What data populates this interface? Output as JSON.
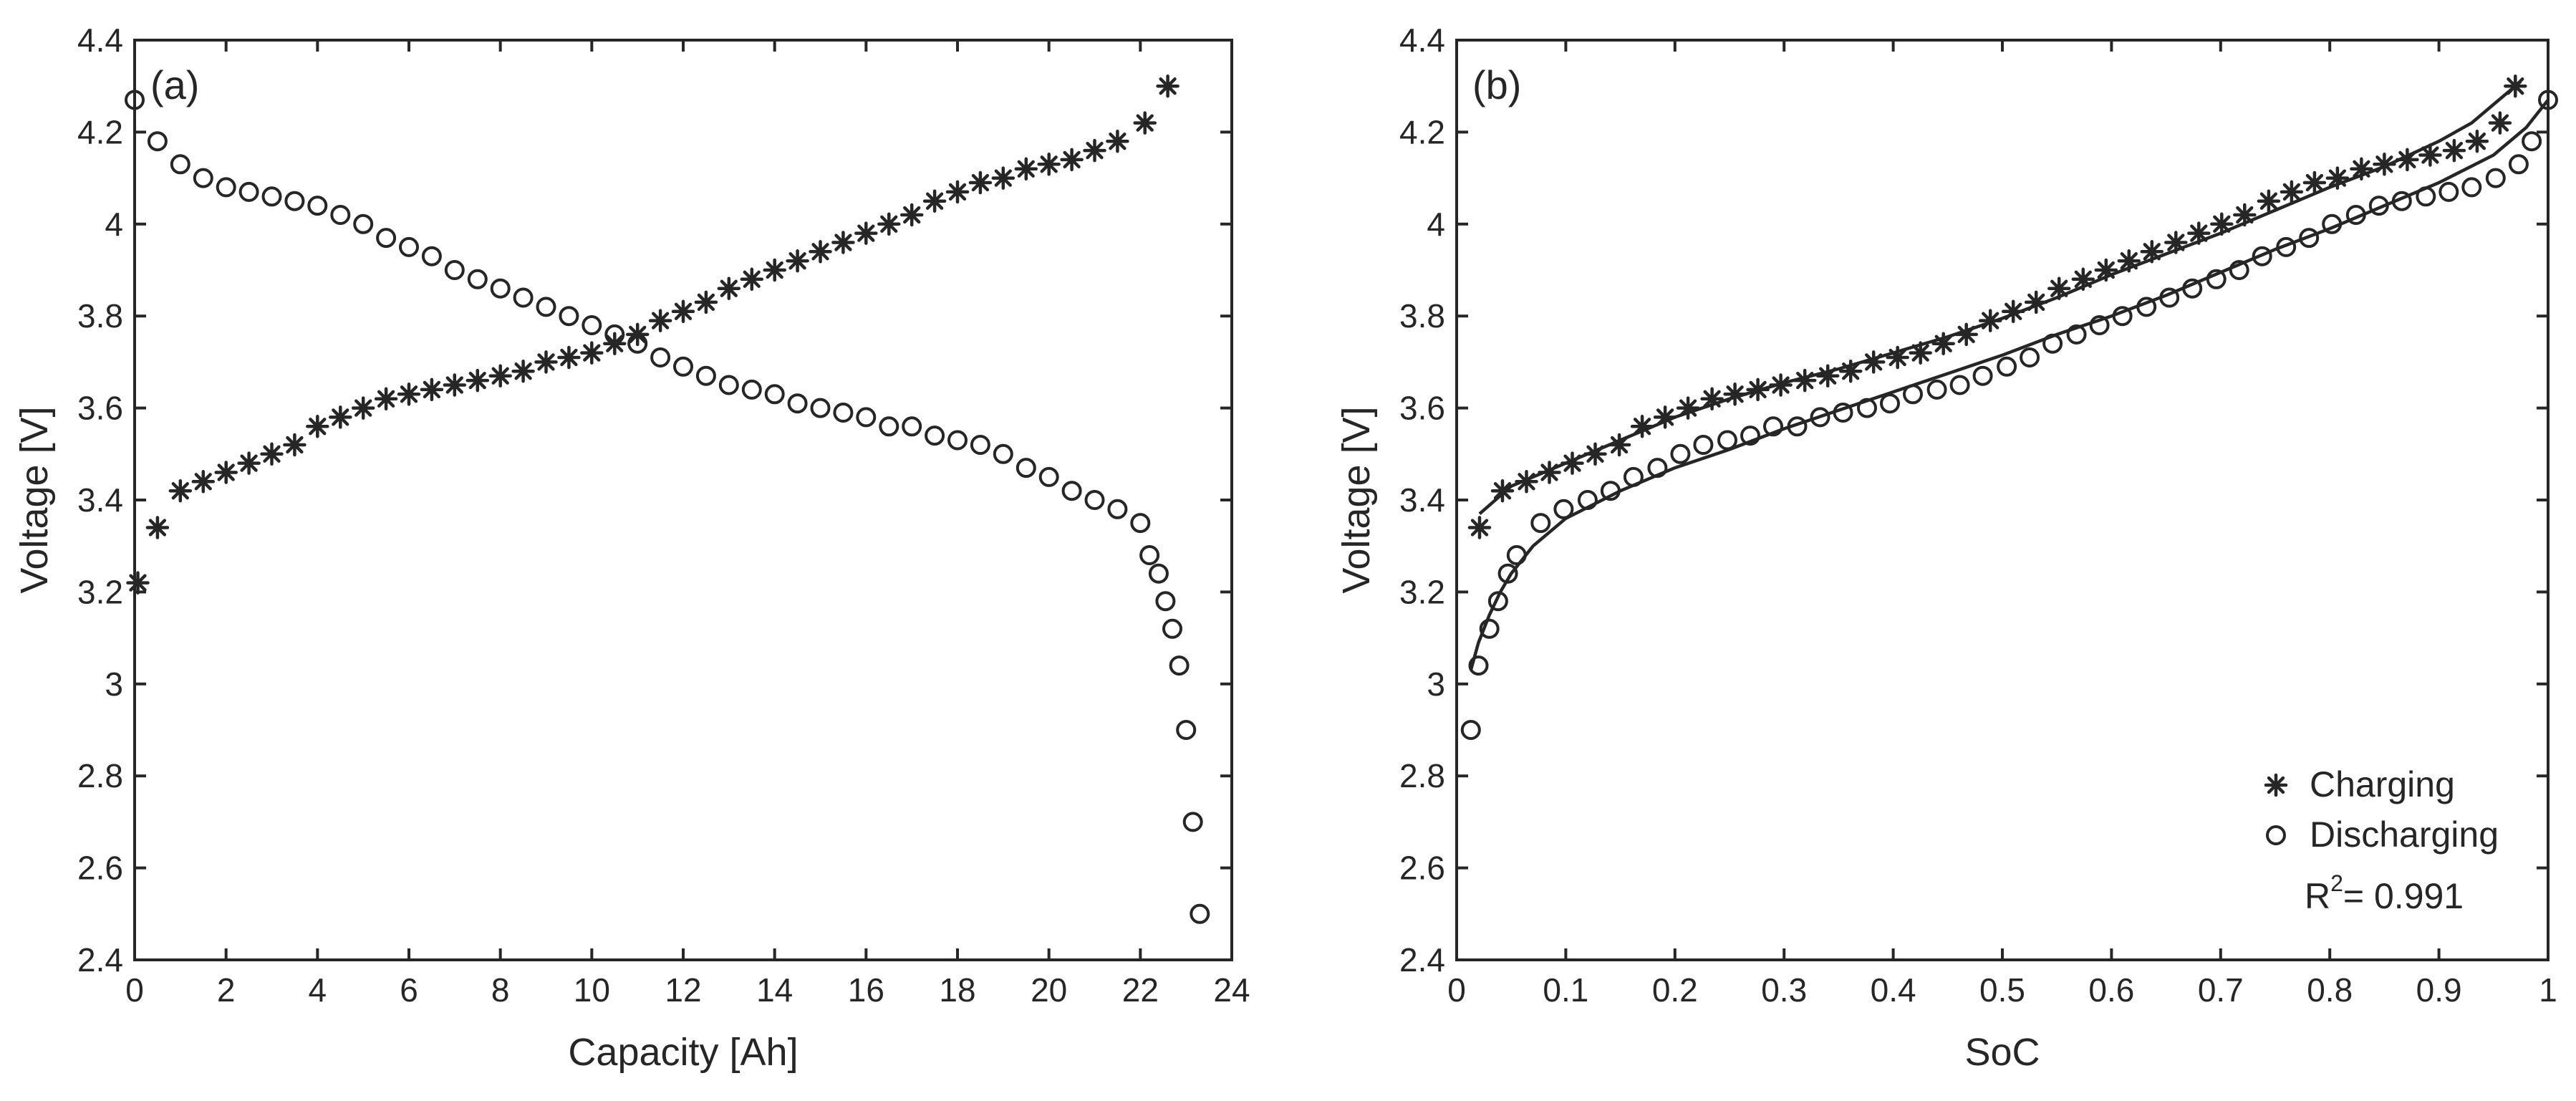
{
  "chart_data": [
    {
      "panel_label": "(a)",
      "type": "scatter",
      "xlabel": "Capacity [Ah]",
      "ylabel": "Voltage [V]",
      "xlim": [
        0,
        24
      ],
      "ylim": [
        2.4,
        4.4
      ],
      "xticks": [
        "0",
        "2",
        "4",
        "6",
        "8",
        "10",
        "12",
        "14",
        "16",
        "18",
        "20",
        "22",
        "24"
      ],
      "yticks": [
        "2.4",
        "2.6",
        "2.8",
        "3",
        "3.2",
        "3.4",
        "3.6",
        "3.8",
        "4",
        "4.2",
        "4.4"
      ],
      "grid": false,
      "series": [
        {
          "name": "Charging",
          "marker": "asterisk",
          "points": [
            [
              0.07,
              3.22
            ],
            [
              0.5,
              3.34
            ],
            [
              1.0,
              3.42
            ],
            [
              1.5,
              3.44
            ],
            [
              2.0,
              3.46
            ],
            [
              2.5,
              3.48
            ],
            [
              3.0,
              3.5
            ],
            [
              3.5,
              3.52
            ],
            [
              4.0,
              3.56
            ],
            [
              4.5,
              3.58
            ],
            [
              5.0,
              3.6
            ],
            [
              5.5,
              3.62
            ],
            [
              6.0,
              3.63
            ],
            [
              6.5,
              3.64
            ],
            [
              7.0,
              3.65
            ],
            [
              7.5,
              3.66
            ],
            [
              8.0,
              3.67
            ],
            [
              8.5,
              3.68
            ],
            [
              9.0,
              3.7
            ],
            [
              9.5,
              3.71
            ],
            [
              10.0,
              3.72
            ],
            [
              10.5,
              3.74
            ],
            [
              11.0,
              3.76
            ],
            [
              11.5,
              3.79
            ],
            [
              12.0,
              3.81
            ],
            [
              12.5,
              3.83
            ],
            [
              13.0,
              3.86
            ],
            [
              13.5,
              3.88
            ],
            [
              14.0,
              3.9
            ],
            [
              14.5,
              3.92
            ],
            [
              15.0,
              3.94
            ],
            [
              15.5,
              3.96
            ],
            [
              16.0,
              3.98
            ],
            [
              16.5,
              4.0
            ],
            [
              17.0,
              4.02
            ],
            [
              17.5,
              4.05
            ],
            [
              18.0,
              4.07
            ],
            [
              18.5,
              4.09
            ],
            [
              19.0,
              4.1
            ],
            [
              19.5,
              4.12
            ],
            [
              20.0,
              4.13
            ],
            [
              20.5,
              4.14
            ],
            [
              21.0,
              4.16
            ],
            [
              21.5,
              4.18
            ],
            [
              22.1,
              4.22
            ],
            [
              22.6,
              4.3
            ]
          ]
        },
        {
          "name": "Discharging",
          "marker": "circle",
          "points": [
            [
              0.0,
              4.27
            ],
            [
              0.5,
              4.18
            ],
            [
              1.0,
              4.13
            ],
            [
              1.5,
              4.1
            ],
            [
              2.0,
              4.08
            ],
            [
              2.5,
              4.07
            ],
            [
              3.0,
              4.06
            ],
            [
              3.5,
              4.05
            ],
            [
              4.0,
              4.04
            ],
            [
              4.5,
              4.02
            ],
            [
              5.0,
              4.0
            ],
            [
              5.5,
              3.97
            ],
            [
              6.0,
              3.95
            ],
            [
              6.5,
              3.93
            ],
            [
              7.0,
              3.9
            ],
            [
              7.5,
              3.88
            ],
            [
              8.0,
              3.86
            ],
            [
              8.5,
              3.84
            ],
            [
              9.0,
              3.82
            ],
            [
              9.5,
              3.8
            ],
            [
              10.0,
              3.78
            ],
            [
              10.5,
              3.76
            ],
            [
              11.0,
              3.74
            ],
            [
              11.5,
              3.71
            ],
            [
              12.0,
              3.69
            ],
            [
              12.5,
              3.67
            ],
            [
              13.0,
              3.65
            ],
            [
              13.5,
              3.64
            ],
            [
              14.0,
              3.63
            ],
            [
              14.5,
              3.61
            ],
            [
              15.0,
              3.6
            ],
            [
              15.5,
              3.59
            ],
            [
              16.0,
              3.58
            ],
            [
              16.5,
              3.56
            ],
            [
              17.0,
              3.56
            ],
            [
              17.5,
              3.54
            ],
            [
              18.0,
              3.53
            ],
            [
              18.5,
              3.52
            ],
            [
              19.0,
              3.5
            ],
            [
              19.5,
              3.47
            ],
            [
              20.0,
              3.45
            ],
            [
              20.5,
              3.42
            ],
            [
              21.0,
              3.4
            ],
            [
              21.5,
              3.38
            ],
            [
              22.0,
              3.35
            ],
            [
              22.2,
              3.28
            ],
            [
              22.4,
              3.24
            ],
            [
              22.55,
              3.18
            ],
            [
              22.7,
              3.12
            ],
            [
              22.85,
              3.04
            ],
            [
              23.0,
              2.9
            ],
            [
              23.15,
              2.7
            ],
            [
              23.3,
              2.5
            ]
          ]
        }
      ]
    },
    {
      "panel_label": "(b)",
      "type": "scatter",
      "xlabel": "SoC",
      "ylabel": "Voltage [V]",
      "xlim": [
        0,
        1
      ],
      "ylim": [
        2.4,
        4.4
      ],
      "xticks": [
        "0",
        "0.1",
        "0.2",
        "0.3",
        "0.4",
        "0.5",
        "0.6",
        "0.7",
        "0.8",
        "0.9",
        "1"
      ],
      "yticks": [
        "2.4",
        "2.6",
        "2.8",
        "3",
        "3.2",
        "3.4",
        "3.6",
        "3.8",
        "4",
        "4.2",
        "4.4"
      ],
      "grid": false,
      "legend_position": "bottom-right",
      "annotation": {
        "prefix": "R",
        "superscript": "2",
        "suffix": "= 0.991"
      },
      "series": [
        {
          "name": "Charging",
          "marker": "asterisk",
          "points": [
            [
              0.021,
              3.34
            ],
            [
              0.042,
              3.42
            ],
            [
              0.064,
              3.44
            ],
            [
              0.085,
              3.46
            ],
            [
              0.106,
              3.48
            ],
            [
              0.127,
              3.5
            ],
            [
              0.149,
              3.52
            ],
            [
              0.17,
              3.56
            ],
            [
              0.191,
              3.58
            ],
            [
              0.212,
              3.6
            ],
            [
              0.234,
              3.62
            ],
            [
              0.255,
              3.63
            ],
            [
              0.276,
              3.64
            ],
            [
              0.297,
              3.65
            ],
            [
              0.319,
              3.66
            ],
            [
              0.34,
              3.67
            ],
            [
              0.361,
              3.68
            ],
            [
              0.382,
              3.7
            ],
            [
              0.404,
              3.71
            ],
            [
              0.425,
              3.72
            ],
            [
              0.446,
              3.74
            ],
            [
              0.467,
              3.76
            ],
            [
              0.489,
              3.79
            ],
            [
              0.51,
              3.81
            ],
            [
              0.531,
              3.83
            ],
            [
              0.552,
              3.86
            ],
            [
              0.574,
              3.88
            ],
            [
              0.595,
              3.9
            ],
            [
              0.616,
              3.92
            ],
            [
              0.637,
              3.94
            ],
            [
              0.659,
              3.96
            ],
            [
              0.68,
              3.98
            ],
            [
              0.701,
              4.0
            ],
            [
              0.722,
              4.02
            ],
            [
              0.744,
              4.05
            ],
            [
              0.765,
              4.07
            ],
            [
              0.786,
              4.09
            ],
            [
              0.807,
              4.1
            ],
            [
              0.829,
              4.12
            ],
            [
              0.85,
              4.13
            ],
            [
              0.871,
              4.14
            ],
            [
              0.892,
              4.15
            ],
            [
              0.914,
              4.16
            ],
            [
              0.935,
              4.18
            ],
            [
              0.956,
              4.22
            ],
            [
              0.97,
              4.3
            ]
          ]
        },
        {
          "name": "Discharging",
          "marker": "circle",
          "points": [
            [
              0.013,
              2.9
            ],
            [
              0.02,
              3.04
            ],
            [
              0.03,
              3.12
            ],
            [
              0.038,
              3.18
            ],
            [
              0.047,
              3.24
            ],
            [
              0.055,
              3.28
            ],
            [
              0.077,
              3.35
            ],
            [
              0.098,
              3.38
            ],
            [
              0.12,
              3.4
            ],
            [
              0.141,
              3.42
            ],
            [
              0.162,
              3.45
            ],
            [
              0.184,
              3.47
            ],
            [
              0.205,
              3.5
            ],
            [
              0.226,
              3.52
            ],
            [
              0.248,
              3.53
            ],
            [
              0.269,
              3.54
            ],
            [
              0.29,
              3.56
            ],
            [
              0.312,
              3.56
            ],
            [
              0.333,
              3.58
            ],
            [
              0.354,
              3.59
            ],
            [
              0.376,
              3.6
            ],
            [
              0.397,
              3.61
            ],
            [
              0.418,
              3.63
            ],
            [
              0.44,
              3.64
            ],
            [
              0.461,
              3.65
            ],
            [
              0.482,
              3.67
            ],
            [
              0.504,
              3.69
            ],
            [
              0.525,
              3.71
            ],
            [
              0.546,
              3.74
            ],
            [
              0.568,
              3.76
            ],
            [
              0.589,
              3.78
            ],
            [
              0.61,
              3.8
            ],
            [
              0.632,
              3.82
            ],
            [
              0.653,
              3.84
            ],
            [
              0.674,
              3.86
            ],
            [
              0.696,
              3.88
            ],
            [
              0.717,
              3.9
            ],
            [
              0.738,
              3.93
            ],
            [
              0.76,
              3.95
            ],
            [
              0.781,
              3.97
            ],
            [
              0.802,
              4.0
            ],
            [
              0.824,
              4.02
            ],
            [
              0.845,
              4.04
            ],
            [
              0.866,
              4.05
            ],
            [
              0.888,
              4.06
            ],
            [
              0.909,
              4.07
            ],
            [
              0.93,
              4.08
            ],
            [
              0.952,
              4.1
            ],
            [
              0.973,
              4.13
            ],
            [
              0.985,
              4.18
            ],
            [
              1.0,
              4.27
            ]
          ]
        }
      ],
      "fits": [
        {
          "name": "Charging fit",
          "points": [
            [
              0.021,
              3.37
            ],
            [
              0.05,
              3.43
            ],
            [
              0.1,
              3.48
            ],
            [
              0.15,
              3.53
            ],
            [
              0.2,
              3.58
            ],
            [
              0.25,
              3.62
            ],
            [
              0.3,
              3.655
            ],
            [
              0.35,
              3.685
            ],
            [
              0.4,
              3.72
            ],
            [
              0.45,
              3.755
            ],
            [
              0.5,
              3.795
            ],
            [
              0.55,
              3.84
            ],
            [
              0.6,
              3.89
            ],
            [
              0.65,
              3.935
            ],
            [
              0.7,
              3.98
            ],
            [
              0.75,
              4.03
            ],
            [
              0.8,
              4.08
            ],
            [
              0.85,
              4.125
            ],
            [
              0.9,
              4.18
            ],
            [
              0.93,
              4.22
            ],
            [
              0.96,
              4.28
            ],
            [
              0.975,
              4.31
            ]
          ]
        },
        {
          "name": "Discharging fit",
          "points": [
            [
              0.013,
              3.03
            ],
            [
              0.02,
              3.09
            ],
            [
              0.03,
              3.15
            ],
            [
              0.04,
              3.2
            ],
            [
              0.05,
              3.24
            ],
            [
              0.07,
              3.3
            ],
            [
              0.1,
              3.36
            ],
            [
              0.15,
              3.42
            ],
            [
              0.2,
              3.47
            ],
            [
              0.25,
              3.51
            ],
            [
              0.3,
              3.555
            ],
            [
              0.35,
              3.595
            ],
            [
              0.4,
              3.635
            ],
            [
              0.45,
              3.675
            ],
            [
              0.5,
              3.715
            ],
            [
              0.55,
              3.76
            ],
            [
              0.6,
              3.8
            ],
            [
              0.65,
              3.845
            ],
            [
              0.7,
              3.895
            ],
            [
              0.75,
              3.945
            ],
            [
              0.8,
              3.99
            ],
            [
              0.85,
              4.04
            ],
            [
              0.9,
              4.09
            ],
            [
              0.95,
              4.15
            ],
            [
              0.98,
              4.21
            ],
            [
              1.0,
              4.27
            ]
          ]
        }
      ]
    }
  ]
}
